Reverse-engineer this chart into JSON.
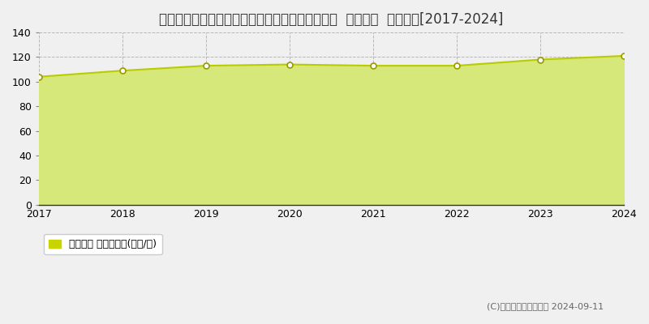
{
  "title": "埼玉県さいたま市中央区鈴谷２丁目７４４番１外  地価公示  地価推移[2017-2024]",
  "years": [
    2017,
    2018,
    2019,
    2020,
    2021,
    2022,
    2023,
    2024
  ],
  "values": [
    104,
    109,
    113,
    114,
    113,
    113,
    118,
    121
  ],
  "ylim": [
    0,
    140
  ],
  "yticks": [
    0,
    20,
    40,
    60,
    80,
    100,
    120,
    140
  ],
  "line_color": "#b8cc00",
  "fill_color": "#d6e87a",
  "marker_face_color": "#ffffff",
  "marker_edge_color": "#999900",
  "bg_color": "#f0f0f0",
  "plot_bg_color": "#f0f0f0",
  "grid_color": "#aaaaaa",
  "legend_label": "地価公示 平均坪単価(万円/坪)",
  "legend_marker_color": "#c8d400",
  "copyright_text": "(C)土地価格ドットコム 2024-09-11",
  "title_fontsize": 12,
  "tick_fontsize": 9,
  "legend_fontsize": 9
}
